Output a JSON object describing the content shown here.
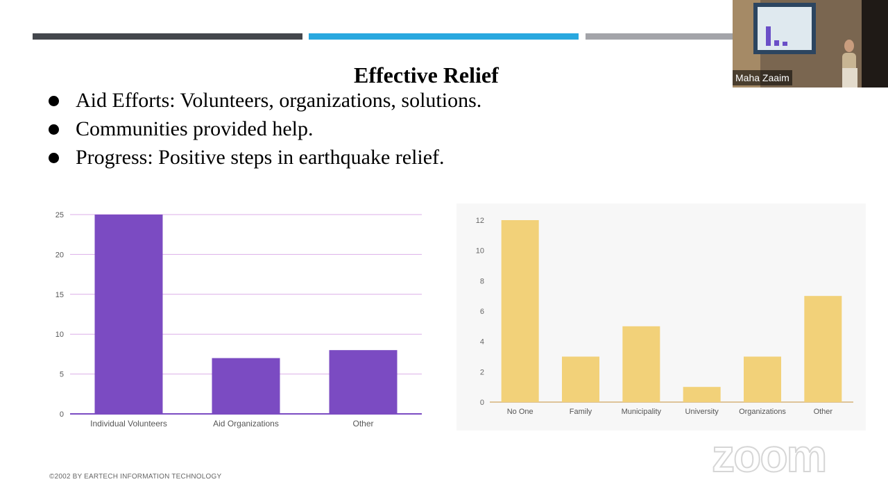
{
  "slide": {
    "title": "Effective Relief",
    "bullets": [
      "Aid Efforts: Volunteers, organizations, solutions.",
      "Communities provided help.",
      "Progress: Positive steps in earthquake relief."
    ],
    "footer": "©2002 BY EARTECH INFORMATION TECHNOLOGY"
  },
  "colors": {
    "bar1": "#44474d",
    "bar2": "#29a8df",
    "bar3": "#a3a4a9",
    "purple": "#7b4bc2",
    "gold": "#f2d179"
  },
  "webcam": {
    "participant_name": "Maha Zaaim"
  },
  "watermark": {
    "text": "zoom"
  },
  "chart_data": [
    {
      "type": "bar",
      "categories": [
        "Individual Volunteers",
        "Aid Organizations",
        "Other"
      ],
      "values": [
        25,
        7,
        8
      ],
      "ylim": [
        0,
        25
      ],
      "yticks": [
        0,
        5,
        10,
        15,
        20,
        25
      ],
      "color": "#7b4bc2",
      "title": "",
      "xlabel": "",
      "ylabel": ""
    },
    {
      "type": "bar",
      "categories": [
        "No One",
        "Family",
        "Municipality",
        "University",
        "Organizations",
        "Other"
      ],
      "values": [
        12,
        3,
        5,
        1,
        3,
        7
      ],
      "ylim": [
        0,
        12
      ],
      "yticks": [
        0,
        2,
        4,
        6,
        8,
        10,
        12
      ],
      "color": "#f2d179",
      "title": "",
      "xlabel": "",
      "ylabel": ""
    }
  ]
}
